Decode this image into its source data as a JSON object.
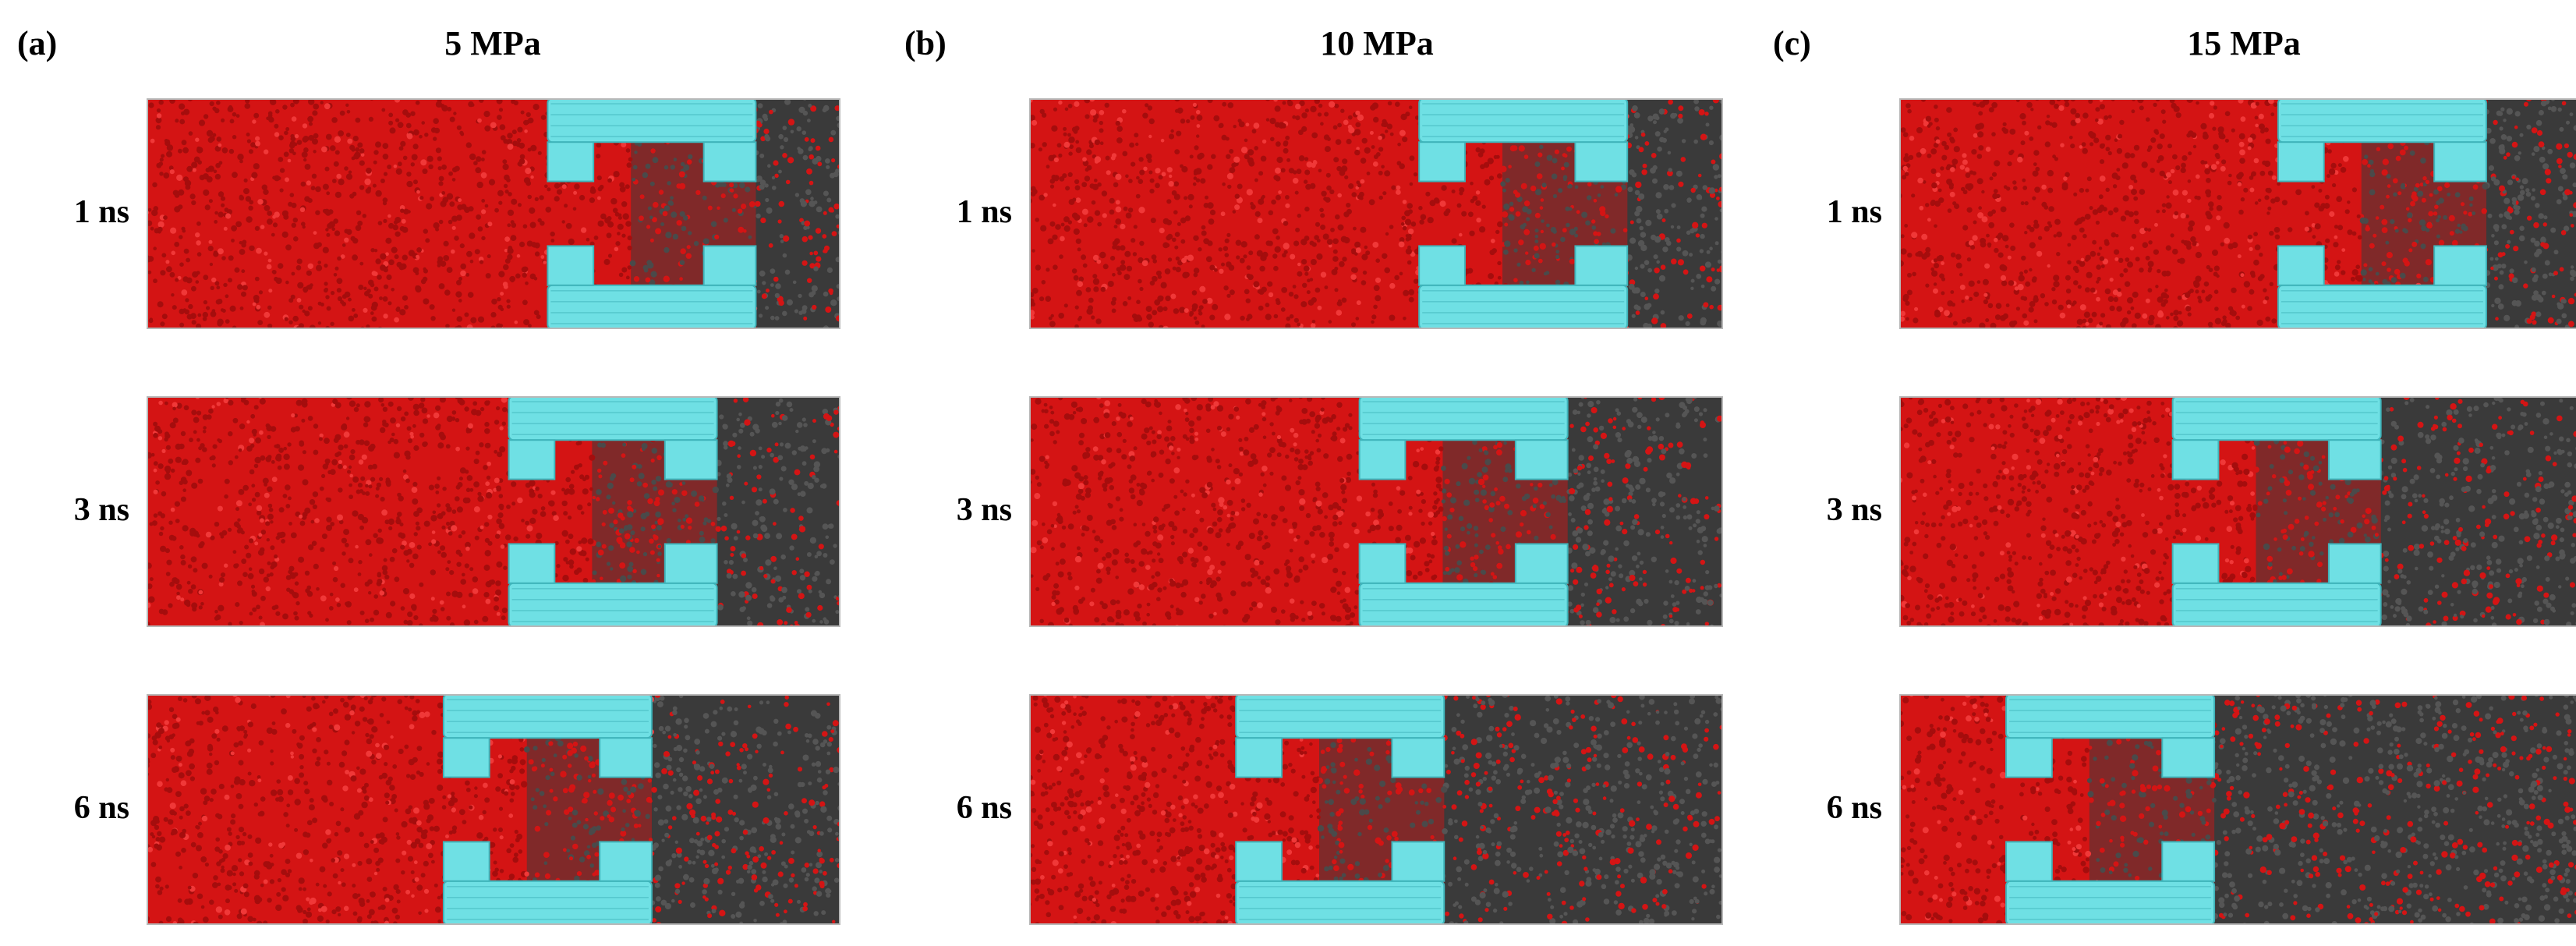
{
  "figure": {
    "panels": [
      {
        "letter": "(a)",
        "title": "5 MPa",
        "frames": [
          {
            "time": "1 ns",
            "wall_front": 0.578
          },
          {
            "time": "3 ns",
            "wall_front": 0.522
          },
          {
            "time": "6 ns",
            "wall_front": 0.428
          }
        ]
      },
      {
        "letter": "(b)",
        "title": "10 MPa",
        "frames": [
          {
            "time": "1 ns",
            "wall_front": 0.562
          },
          {
            "time": "3 ns",
            "wall_front": 0.476
          },
          {
            "time": "6 ns",
            "wall_front": 0.298
          }
        ]
      },
      {
        "letter": "(c)",
        "title": "15 MPa",
        "frames": [
          {
            "time": "1 ns",
            "wall_front": 0.546
          },
          {
            "time": "3 ns",
            "wall_front": 0.394
          },
          {
            "time": "6 ns",
            "wall_front": 0.154
          }
        ]
      }
    ],
    "colors": {
      "water": "#d41414",
      "gas": "#3a3a3a",
      "membrane": "#6fe0e4",
      "membrane_edge": "#3fb4ba",
      "border": "#b8b8b8"
    }
  }
}
